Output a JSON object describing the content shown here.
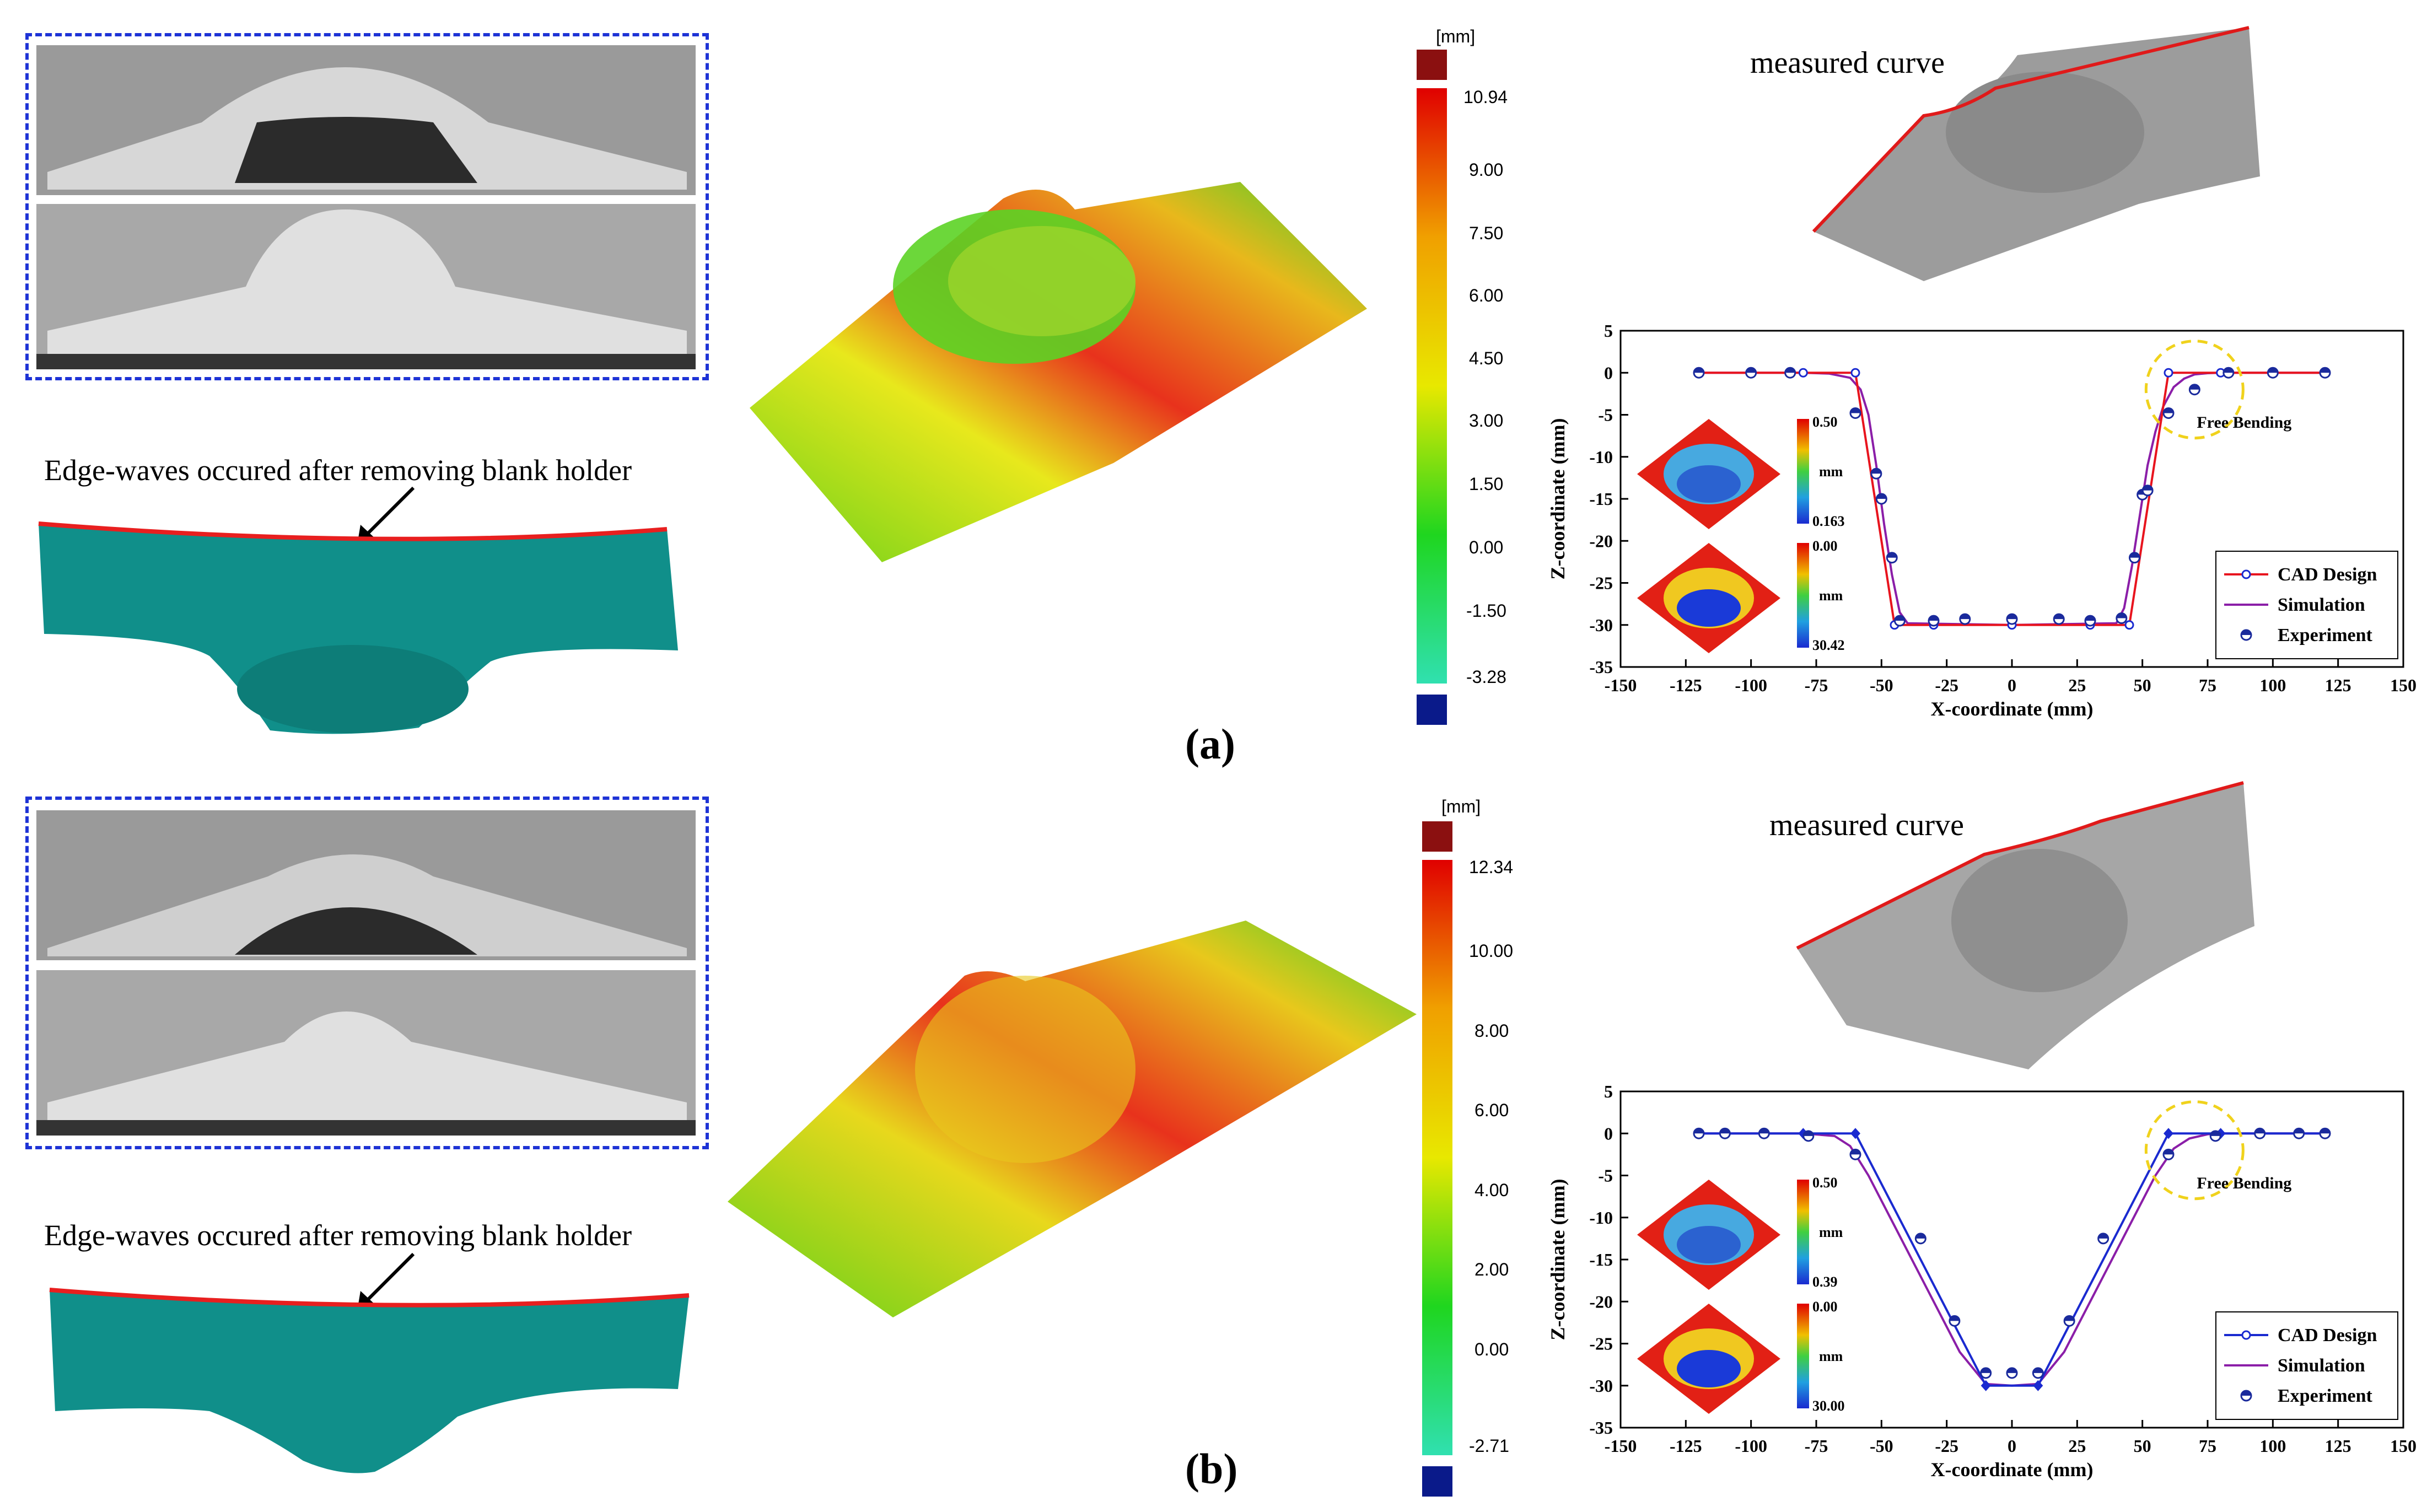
{
  "panels": [
    {
      "label": "(a)",
      "annotation": "Edge-waves occured after removing blank holder",
      "colorbar": {
        "unit": "[mm]",
        "ticks": [
          "10.94",
          "9.00",
          "7.50",
          "6.00",
          "4.50",
          "3.00",
          "1.50",
          "0.00",
          "-1.50",
          "-3.28"
        ]
      },
      "measured_label": "measured curve",
      "inset_top": {
        "max": "0.50",
        "unit": "mm",
        "min": "0.163"
      },
      "inset_bottom": {
        "max": "0.00",
        "unit": "mm",
        "min": "30.42"
      },
      "free_bending": "Free Bending"
    },
    {
      "label": "(b)",
      "annotation": "Edge-waves occured after removing blank holder",
      "colorbar": {
        "unit": "[mm]",
        "ticks": [
          "12.34",
          "10.00",
          "8.00",
          "6.00",
          "4.00",
          "2.00",
          "0.00",
          "-2.71"
        ]
      },
      "measured_label": "measured curve",
      "inset_top": {
        "max": "0.50",
        "unit": "mm",
        "min": "0.39"
      },
      "inset_bottom": {
        "max": "0.00",
        "unit": "mm",
        "min": "30.00"
      },
      "free_bending": "Free Bending"
    }
  ],
  "chart_data": [
    {
      "type": "line",
      "xlabel": "X-coordinate (mm)",
      "ylabel": "Z-coordinate (mm)",
      "xlim": [
        -150,
        150
      ],
      "ylim": [
        -35,
        5
      ],
      "xticks": [
        "-150",
        "-125",
        "-100",
        "-75",
        "-50",
        "-25",
        "0",
        "25",
        "50",
        "75",
        "100",
        "125",
        "150"
      ],
      "yticks": [
        "5",
        "0",
        "-5",
        "-10",
        "-15",
        "-20",
        "-25",
        "-30",
        "-35"
      ],
      "legend": [
        "CAD Design",
        "Simulation",
        "Experiment"
      ],
      "series": [
        {
          "name": "CAD Design",
          "color": "#e8141e",
          "x": [
            -120,
            -100,
            -80,
            -60,
            -45,
            -30,
            0,
            30,
            45,
            60,
            80,
            100,
            120
          ],
          "y": [
            0,
            0,
            0,
            0,
            -30,
            -30,
            -30,
            -30,
            -30,
            0,
            0,
            0,
            0
          ]
        },
        {
          "name": "Simulation",
          "color": "#8b1ea8",
          "x": [
            -120,
            -80,
            -70,
            -62,
            -58,
            -55,
            -52,
            -49,
            -46,
            -43,
            -40,
            0,
            40,
            43,
            46,
            49,
            52,
            55,
            58,
            62,
            66,
            70,
            75,
            80,
            120
          ],
          "y": [
            0,
            0,
            -0.1,
            -0.6,
            -2,
            -5,
            -11,
            -18,
            -24,
            -28.5,
            -29.8,
            -30,
            -29.8,
            -28,
            -23,
            -17,
            -11,
            -7,
            -4,
            -1.7,
            -0.7,
            -0.2,
            -0.05,
            0,
            0
          ]
        },
        {
          "name": "Experiment",
          "color": "#1a2a9c",
          "x": [
            -120,
            -100,
            -85,
            -60,
            -52,
            -50,
            -46,
            -43,
            -30,
            -18,
            0,
            18,
            30,
            42,
            47,
            50,
            52,
            60,
            70,
            83,
            100,
            120
          ],
          "y": [
            0,
            0,
            0,
            -4.8,
            -12,
            -15,
            -22,
            -29.5,
            -29.5,
            -29.3,
            -29.3,
            -29.3,
            -29.5,
            -29.2,
            -22,
            -14.5,
            -14,
            -4.8,
            -2,
            0,
            0,
            0
          ]
        }
      ]
    },
    {
      "type": "line",
      "xlabel": "X-coordinate (mm)",
      "ylabel": "Z-coordinate (mm)",
      "xlim": [
        -150,
        150
      ],
      "ylim": [
        -35,
        5
      ],
      "xticks": [
        "-150",
        "-125",
        "-100",
        "-75",
        "-50",
        "-25",
        "0",
        "25",
        "50",
        "75",
        "100",
        "125",
        "150"
      ],
      "yticks": [
        "5",
        "0",
        "-5",
        "-10",
        "-15",
        "-20",
        "-25",
        "-30",
        "-35"
      ],
      "legend": [
        "CAD Design",
        "Simulation",
        "Experiment"
      ],
      "series": [
        {
          "name": "CAD Design",
          "color": "#1a2ad0",
          "x": [
            -120,
            -110,
            -95,
            -80,
            -60,
            -10,
            10,
            60,
            80,
            95,
            110,
            120
          ],
          "y": [
            0,
            0,
            0,
            0,
            0,
            -30,
            -30,
            0,
            0,
            0,
            0,
            0
          ]
        },
        {
          "name": "Simulation",
          "color": "#8b1ea8",
          "x": [
            -120,
            -80,
            -68,
            -62,
            -55,
            -35,
            -20,
            -10,
            0,
            10,
            20,
            35,
            55,
            62,
            68,
            75,
            80,
            120
          ],
          "y": [
            0,
            0,
            -0.3,
            -1.5,
            -5,
            -17,
            -26,
            -29.8,
            -30,
            -29.8,
            -26,
            -17,
            -5,
            -1.8,
            -0.6,
            -0.1,
            0,
            0
          ]
        },
        {
          "name": "Experiment",
          "color": "#1a2a9c",
          "x": [
            -120,
            -110,
            -95,
            -78,
            -60,
            -35,
            -22,
            -10,
            0,
            10,
            22,
            35,
            60,
            78,
            95,
            110,
            120
          ],
          "y": [
            0,
            0,
            0,
            -0.3,
            -2.5,
            -12.5,
            -22.3,
            -28.5,
            -28.5,
            -28.5,
            -22.3,
            -12.5,
            -2.5,
            -0.3,
            0,
            0,
            0
          ]
        }
      ]
    }
  ]
}
